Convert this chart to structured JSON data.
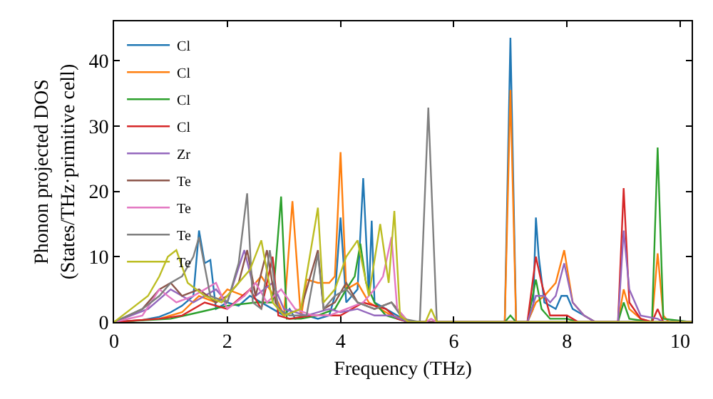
{
  "chart_data": {
    "type": "line",
    "xlabel": "Frequency (THz)",
    "ylabel": "Phonon projected DOS\n(States/THz·primitive cell)",
    "xlim": [
      0,
      10.2
    ],
    "ylim": [
      0,
      46
    ],
    "xticks": [
      0,
      2,
      4,
      6,
      8,
      10
    ],
    "yticks": [
      0,
      10,
      20,
      30,
      40
    ],
    "grid": false,
    "legend": "top left",
    "marker": "none",
    "line_style": "solid",
    "series": [
      {
        "name": "Cl",
        "color": "#1f77b4",
        "x": [
          0,
          0.5,
          0.8,
          1.0,
          1.2,
          1.4,
          1.5,
          1.6,
          1.7,
          1.8,
          2.0,
          2.2,
          2.4,
          2.6,
          2.8,
          3.0,
          3.1,
          3.2,
          3.4,
          3.6,
          3.8,
          3.9,
          4.0,
          4.1,
          4.3,
          4.4,
          4.5,
          4.55,
          4.6,
          4.8,
          5.0,
          5.1,
          5.2,
          6.9,
          7.0,
          7.1,
          7.3,
          7.4,
          7.45,
          7.5,
          7.6,
          7.7,
          7.8,
          7.9,
          8.0,
          8.1,
          8.3,
          8.5,
          10.2
        ],
        "values": [
          0,
          0.3,
          0.8,
          1.5,
          2.5,
          4,
          14,
          9,
          9.5,
          2,
          3,
          2.5,
          4,
          3,
          2,
          1,
          2,
          0.5,
          1,
          0.5,
          1,
          4,
          16,
          3,
          5,
          22,
          4,
          15.5,
          3,
          2,
          1,
          0.5,
          0,
          0,
          43.5,
          0,
          0,
          2,
          16,
          10,
          3,
          2.5,
          2,
          4,
          4,
          2,
          1,
          0,
          0
        ]
      },
      {
        "name": "Cl",
        "color": "#ff7f0e",
        "x": [
          0,
          0.8,
          1.2,
          1.5,
          1.8,
          2.0,
          2.3,
          2.6,
          2.9,
          3.0,
          3.15,
          3.3,
          3.4,
          3.6,
          3.8,
          3.9,
          4.0,
          4.1,
          4.3,
          4.5,
          4.7,
          4.9,
          5.1,
          5.2,
          6.9,
          7.0,
          7.1,
          7.3,
          7.45,
          7.6,
          7.8,
          7.95,
          8.1,
          8.3,
          8.5,
          8.9,
          9.0,
          9.1,
          9.3,
          9.5,
          9.6,
          9.7,
          9.8,
          10.2
        ],
        "values": [
          0,
          0.5,
          1.5,
          4,
          3,
          5,
          4,
          7,
          3,
          1,
          18.5,
          0.5,
          6.5,
          6,
          6,
          7,
          26,
          5,
          6,
          3,
          2,
          1,
          0.5,
          0,
          0,
          35.5,
          0,
          0,
          3,
          4,
          6,
          11,
          3,
          1,
          0,
          0,
          5,
          2,
          0.5,
          0,
          10.5,
          1,
          0,
          0
        ]
      },
      {
        "name": "Cl",
        "color": "#2ca02c",
        "x": [
          0,
          1.0,
          1.5,
          2.0,
          2.5,
          2.8,
          2.95,
          3.05,
          3.3,
          3.6,
          3.9,
          4.1,
          4.25,
          4.35,
          4.45,
          4.6,
          4.8,
          5.0,
          5.2,
          6.9,
          7.0,
          7.1,
          7.3,
          7.45,
          7.55,
          7.7,
          8.0,
          8.2,
          8.9,
          9.0,
          9.1,
          9.5,
          9.6,
          9.7,
          10.2
        ],
        "values": [
          0,
          0.5,
          1.5,
          2.5,
          3,
          3,
          19.2,
          0.5,
          0.5,
          1,
          2,
          5,
          7,
          12,
          6,
          3,
          1,
          0.5,
          0,
          0,
          1,
          0,
          0,
          6.5,
          2,
          0.5,
          0.5,
          0,
          0,
          3,
          0.5,
          0,
          26.7,
          0.5,
          0
        ]
      },
      {
        "name": "Cl",
        "color": "#d62728",
        "x": [
          0,
          0.8,
          1.2,
          1.6,
          2.0,
          2.4,
          2.6,
          2.8,
          2.9,
          3.1,
          3.5,
          4.0,
          4.4,
          4.8,
          5.0,
          5.2,
          7.3,
          7.45,
          7.55,
          7.7,
          8.0,
          8.2,
          8.9,
          9.0,
          9.1,
          9.3,
          9.5,
          9.6,
          9.7,
          10.2
        ],
        "values": [
          0,
          0.5,
          1,
          3,
          2,
          5,
          2,
          10,
          1,
          0.5,
          1,
          1,
          3,
          2,
          0.5,
          0,
          0,
          10,
          6,
          1,
          1,
          0,
          0,
          20.5,
          3,
          0.5,
          0,
          2,
          0,
          0
        ]
      },
      {
        "name": "Zr",
        "color": "#9467bd",
        "x": [
          0,
          0.6,
          1.0,
          1.4,
          1.8,
          2.0,
          2.3,
          2.5,
          2.8,
          3.0,
          3.4,
          3.8,
          4.0,
          4.3,
          4.6,
          4.9,
          5.2,
          7.3,
          7.45,
          7.6,
          7.7,
          7.8,
          7.95,
          8.1,
          8.3,
          8.5,
          8.9,
          9.0,
          9.1,
          9.3,
          9.6,
          9.7,
          10.2
        ],
        "values": [
          0,
          2,
          5,
          3,
          5,
          3,
          11,
          4,
          6,
          2,
          1,
          2,
          1.5,
          2,
          1,
          1,
          0,
          0,
          4,
          4,
          3,
          4,
          9,
          3,
          1,
          0,
          0,
          14,
          5,
          1,
          0.5,
          0,
          0
        ]
      },
      {
        "name": "Te",
        "color": "#8c564b",
        "x": [
          0,
          0.5,
          0.8,
          1.0,
          1.2,
          1.5,
          1.8,
          2.0,
          2.2,
          2.35,
          2.5,
          2.7,
          2.85,
          3.0,
          3.3,
          3.6,
          3.7,
          3.9,
          4.1,
          4.3,
          4.6,
          4.9,
          5.1,
          5.2,
          10.2
        ],
        "values": [
          0,
          2,
          5,
          6,
          4,
          5,
          3,
          4,
          6,
          11,
          4,
          11,
          3,
          1,
          2,
          11,
          2,
          3,
          6,
          3,
          2,
          3,
          1,
          0,
          0
        ]
      },
      {
        "name": "Te",
        "color": "#e377c2",
        "x": [
          0,
          0.5,
          0.8,
          1.1,
          1.4,
          1.8,
          2.0,
          2.3,
          2.5,
          2.7,
          2.95,
          3.2,
          3.5,
          3.8,
          4.1,
          4.4,
          4.6,
          4.75,
          4.9,
          5.0,
          5.2,
          5.5,
          5.6,
          5.7,
          10.2
        ],
        "values": [
          0,
          1,
          5,
          3,
          4,
          6,
          2,
          4,
          6,
          3,
          5,
          2,
          1,
          1,
          2,
          3,
          5,
          7,
          13,
          2,
          0,
          0,
          0.5,
          0,
          0
        ]
      },
      {
        "name": "Te",
        "color": "#7f7f7f",
        "x": [
          0,
          0.5,
          0.8,
          1.0,
          1.2,
          1.4,
          1.5,
          1.7,
          2.0,
          2.2,
          2.35,
          2.45,
          2.6,
          2.75,
          2.9,
          3.1,
          3.4,
          3.6,
          3.7,
          3.9,
          4.1,
          4.3,
          4.6,
          4.9,
          5.1,
          5.4,
          5.55,
          5.7,
          10.2
        ],
        "values": [
          0,
          2,
          4,
          6,
          7,
          10,
          13,
          4,
          3,
          9,
          19.7,
          3,
          2,
          11,
          2,
          1,
          1,
          10.5,
          2,
          4,
          5,
          3,
          2,
          3,
          0.5,
          0,
          32.8,
          0,
          0
        ]
      },
      {
        "name": "Te",
        "color": "#bcbd22",
        "x": [
          0,
          0.3,
          0.6,
          0.8,
          0.95,
          1.1,
          1.3,
          1.6,
          1.9,
          2.1,
          2.4,
          2.6,
          2.8,
          3.0,
          3.3,
          3.6,
          3.7,
          3.9,
          4.1,
          4.3,
          4.5,
          4.7,
          4.85,
          4.95,
          5.05,
          5.2,
          5.5,
          5.6,
          5.7,
          10.2
        ],
        "values": [
          0,
          2,
          4,
          7,
          10,
          11,
          6,
          4,
          3,
          5,
          8,
          12.5,
          3,
          1,
          2,
          17.5,
          3,
          5,
          10,
          12.5,
          4,
          15,
          6,
          17,
          1,
          0,
          0,
          2,
          0,
          0
        ]
      }
    ]
  }
}
